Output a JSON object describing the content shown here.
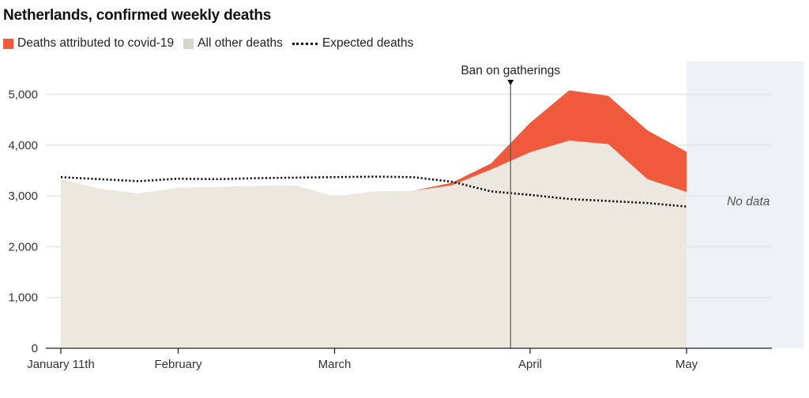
{
  "chart_data": {
    "type": "area",
    "title": "Netherlands, confirmed weekly deaths",
    "ylim": [
      0,
      5000
    ],
    "y_ticks": [
      0,
      1000,
      2000,
      3000,
      4000,
      5000
    ],
    "y_tick_labels": [
      "0",
      "1,000",
      "2,000",
      "3,000",
      "4,000",
      "5,000"
    ],
    "x_tick_labels": [
      "January 11th",
      "February",
      "March",
      "April",
      "May"
    ],
    "x_tick_positions": [
      0,
      3,
      7,
      12,
      16
    ],
    "legend": {
      "covid": "Deaths attributed to covid-19",
      "other": "All other deaths",
      "expected": "Expected deaths"
    },
    "series": [
      {
        "name": "All other deaths",
        "values": [
          3340,
          3140,
          3050,
          3160,
          3180,
          3200,
          3210,
          2990,
          3090,
          3100,
          3210,
          3520,
          3860,
          4090,
          4020,
          3330,
          3080
        ]
      },
      {
        "name": "Deaths attributed to covid-19",
        "values": [
          0,
          0,
          0,
          0,
          0,
          0,
          0,
          0,
          0,
          0,
          50,
          120,
          580,
          990,
          950,
          960,
          790
        ]
      },
      {
        "name": "Expected deaths",
        "values": [
          3370,
          3330,
          3290,
          3340,
          3330,
          3350,
          3360,
          3370,
          3380,
          3370,
          3280,
          3090,
          3020,
          2940,
          2900,
          2860,
          2790
        ]
      }
    ],
    "annotations": {
      "ban_label": "Ban on gatherings",
      "ban_week": 11.5,
      "no_data_label": "No data",
      "no_data_start_week": 16,
      "no_data_end_week": 19
    },
    "colors": {
      "covid": "#ef5a3d",
      "other": "#ece8df",
      "expected": "#111111",
      "no_data": "#edf1f5",
      "grid": "#e4e6e8"
    }
  }
}
